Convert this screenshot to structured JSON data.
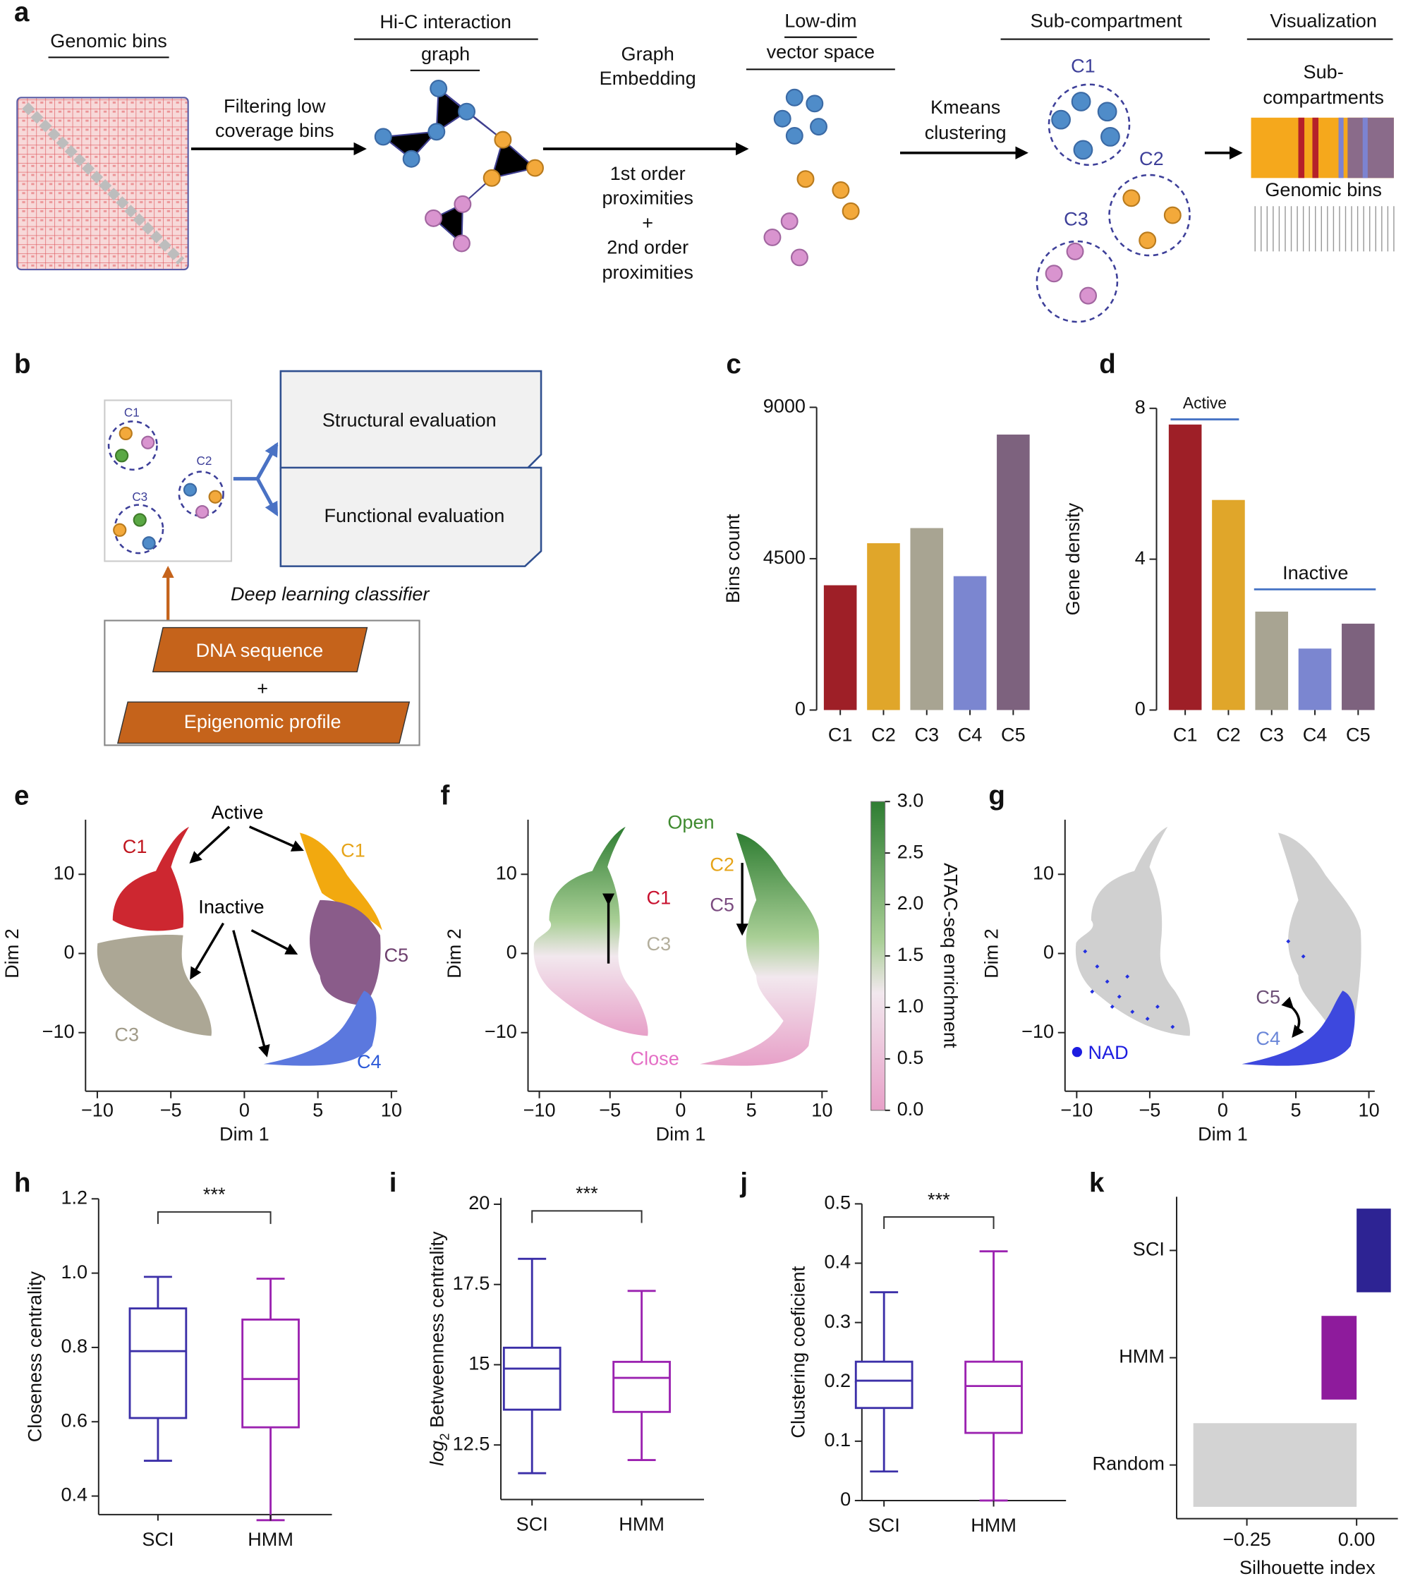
{
  "panel_labels": [
    "a",
    "b",
    "c",
    "d",
    "e",
    "f",
    "g",
    "h",
    "i",
    "j",
    "k"
  ],
  "diagram_a": {
    "genomic_bins": "Genomic bins",
    "filtering": [
      "Filtering low",
      "coverage bins"
    ],
    "hic_title": [
      "Hi-C interaction",
      "graph"
    ],
    "embedding": [
      "Graph",
      "Embedding"
    ],
    "proximities": [
      "1st order",
      "proximities",
      "+",
      "2nd order",
      "proximities"
    ],
    "lowdim": [
      "Low-dim",
      "vector space"
    ],
    "kmeans": [
      "Kmeans",
      "clustering"
    ],
    "subcompartment": "Sub-compartment",
    "clusters": [
      "C1",
      "C2",
      "C3"
    ],
    "visualization": "Visualization",
    "subcompartments": [
      "Sub-",
      "compartments"
    ],
    "vis_bins": "Genomic bins"
  },
  "diagram_b": {
    "clusters": [
      "C1",
      "C2",
      "C3"
    ],
    "structural": "Structural evaluation",
    "functional": "Functional evaluation",
    "classifier": "Deep learning classifier",
    "dna": "DNA sequence",
    "plus": "+",
    "epigenomic": "Epigenomic profile"
  },
  "chart_data": [
    {
      "type": "bar",
      "panel": "c",
      "ylabel": "Bins count",
      "categories": [
        "C1",
        "C2",
        "C3",
        "C4",
        "C5"
      ],
      "values": [
        3710,
        4960,
        5410,
        3980,
        8190
      ],
      "colors": [
        "#9e1f27",
        "#e0a62a",
        "#a8a492",
        "#7b86d0",
        "#7d627e"
      ],
      "ylim": [
        0,
        9000
      ],
      "yticks": [
        0,
        4500,
        9000
      ]
    },
    {
      "type": "bar",
      "panel": "d",
      "ylabel": "Gene density",
      "categories": [
        "C1",
        "C2",
        "C3",
        "C4",
        "C5"
      ],
      "values": [
        7.57,
        5.57,
        2.61,
        1.63,
        2.29
      ],
      "colors": [
        "#9e1f27",
        "#e0a62a",
        "#a8a492",
        "#7b86d0",
        "#7d627e"
      ],
      "ylim": [
        0,
        8
      ],
      "yticks": [
        0,
        4,
        8
      ],
      "annotations": [
        "Active",
        "Inactive"
      ],
      "annotation_color": "#4472c4"
    },
    {
      "type": "scatter",
      "panel": "e",
      "xlabel": "Dim 1",
      "ylabel": "Dim 2",
      "xlim": [
        -10.8,
        10.4
      ],
      "ylim": [
        -17.4,
        16.9
      ],
      "xticks": [
        {
          "value": -10,
          "label": "−10"
        },
        {
          "value": -5,
          "label": "−5"
        },
        0,
        5,
        10
      ],
      "yticks": [
        {
          "value": -10,
          "label": "−10"
        },
        0,
        10
      ],
      "annotations": [
        {
          "text": "Active",
          "color": "#000000"
        },
        {
          "text": "Inactive",
          "color": "#000000"
        },
        {
          "text": "C1",
          "color": "#c0151e"
        },
        {
          "text": "C1",
          "color": "#e6a419"
        },
        {
          "text": "C3",
          "color": "#a09a88"
        },
        {
          "text": "C5",
          "color": "#6d3f6e"
        },
        {
          "text": "C4",
          "color": "#2e5bd8"
        }
      ]
    },
    {
      "type": "scatter",
      "panel": "f",
      "xlabel": "Dim 1",
      "ylabel": "Dim 2",
      "xlim": [
        -10.8,
        10.4
      ],
      "ylim": [
        -17.4,
        16.9
      ],
      "xticks": [
        {
          "value": -10,
          "label": "−10"
        },
        {
          "value": -5,
          "label": "−5"
        },
        0,
        5,
        10
      ],
      "yticks": [
        {
          "value": -10,
          "label": "−10"
        },
        0,
        10
      ],
      "annotations": [
        {
          "text": "Open",
          "color": "#3f8a2f"
        },
        {
          "text": "Close",
          "color": "#e46fc5"
        },
        {
          "text": "C1",
          "color": "#c8102e"
        },
        {
          "text": "C3",
          "color": "#b3ae9c"
        },
        {
          "text": "C2",
          "color": "#e6a419"
        },
        {
          "text": "C5",
          "color": "#7b4b80"
        }
      ],
      "colorbar": {
        "label": "ATAC-seq enrichment",
        "lim": [
          0,
          3
        ],
        "colors": [
          "#d9509f",
          "#f7eef3",
          "#2e7d32"
        ],
        "ticks": [
          {
            "value": 0,
            "label": "0.0"
          },
          0.5,
          {
            "value": 1,
            "label": "1.0"
          },
          1.5,
          {
            "value": 2,
            "label": "2.0"
          },
          2.5,
          {
            "value": 3,
            "label": "3.0"
          }
        ]
      }
    },
    {
      "type": "scatter",
      "panel": "g",
      "xlabel": "Dim 1",
      "ylabel": "Dim 2",
      "xlim": [
        -10.8,
        10.4
      ],
      "ylim": [
        -17.4,
        16.9
      ],
      "xticks": [
        {
          "value": -10,
          "label": "−10"
        },
        {
          "value": -5,
          "label": "−5"
        },
        0,
        5,
        10
      ],
      "yticks": [
        {
          "value": -10,
          "label": "−10"
        },
        0,
        10
      ],
      "annotations": [
        {
          "text": "C5",
          "color": "#6d5077"
        },
        {
          "text": "C4",
          "color": "#6a86d8"
        },
        {
          "text": "NAD",
          "color": "#1c1ce0"
        }
      ]
    },
    {
      "type": "box",
      "panel": "h",
      "ylabel": "Closeness centrality",
      "significance": "***",
      "ylim": [
        0.35,
        1.2
      ],
      "yticks": [
        0.4,
        0.6,
        0.8,
        {
          "value": 1,
          "label": "1.0"
        },
        1.2
      ],
      "boxes": [
        {
          "name": "SCI",
          "color": "#3b2fa8",
          "min": 0.495,
          "q1": 0.61,
          "median": 0.79,
          "q3": 0.905,
          "max": 0.99
        },
        {
          "name": "HMM",
          "color": "#9b22b0",
          "min": 0.335,
          "q1": 0.585,
          "median": 0.715,
          "q3": 0.875,
          "max": 0.985
        }
      ]
    },
    {
      "type": "box",
      "panel": "i",
      "ylabel_parts": [
        "log",
        "2",
        " Betweenness centrality"
      ],
      "significance": "***",
      "ylim": [
        10.8,
        20.2
      ],
      "yticks": [
        12.5,
        15,
        17.5,
        20
      ],
      "boxes": [
        {
          "name": "SCI",
          "color": "#3b2fa8",
          "min": 11.62,
          "q1": 13.6,
          "median": 14.88,
          "q3": 15.53,
          "max": 18.3
        },
        {
          "name": "HMM",
          "color": "#9b22b0",
          "min": 12.03,
          "q1": 13.53,
          "median": 14.59,
          "q3": 15.09,
          "max": 17.3
        }
      ]
    },
    {
      "type": "box",
      "panel": "j",
      "ylabel": "Clustering coeficient",
      "significance": "***",
      "ylim": [
        0,
        0.5
      ],
      "yticks": [
        0,
        0.1,
        0.2,
        0.3,
        0.4,
        0.5
      ],
      "boxes": [
        {
          "name": "SCI",
          "color": "#3b2fa8",
          "min": 0.049,
          "q1": 0.156,
          "median": 0.202,
          "q3": 0.234,
          "max": 0.351
        },
        {
          "name": "HMM",
          "color": "#9b22b0",
          "min": 0,
          "q1": 0.114,
          "median": 0.193,
          "q3": 0.234,
          "max": 0.42
        }
      ]
    },
    {
      "type": "barh",
      "panel": "k",
      "xlabel": "Silhouette index",
      "categories": [
        "SCI",
        "HMM",
        "Random"
      ],
      "values": [
        0.078,
        -0.08,
        -0.372
      ],
      "colors": [
        "#2d2393",
        "#8e1b9c",
        "#d3d3d3"
      ],
      "xlim": [
        -0.41,
        0.094
      ],
      "xticks": [
        {
          "value": -0.25,
          "label": "−0.25"
        },
        {
          "value": 0,
          "label": "0.00"
        }
      ]
    }
  ]
}
